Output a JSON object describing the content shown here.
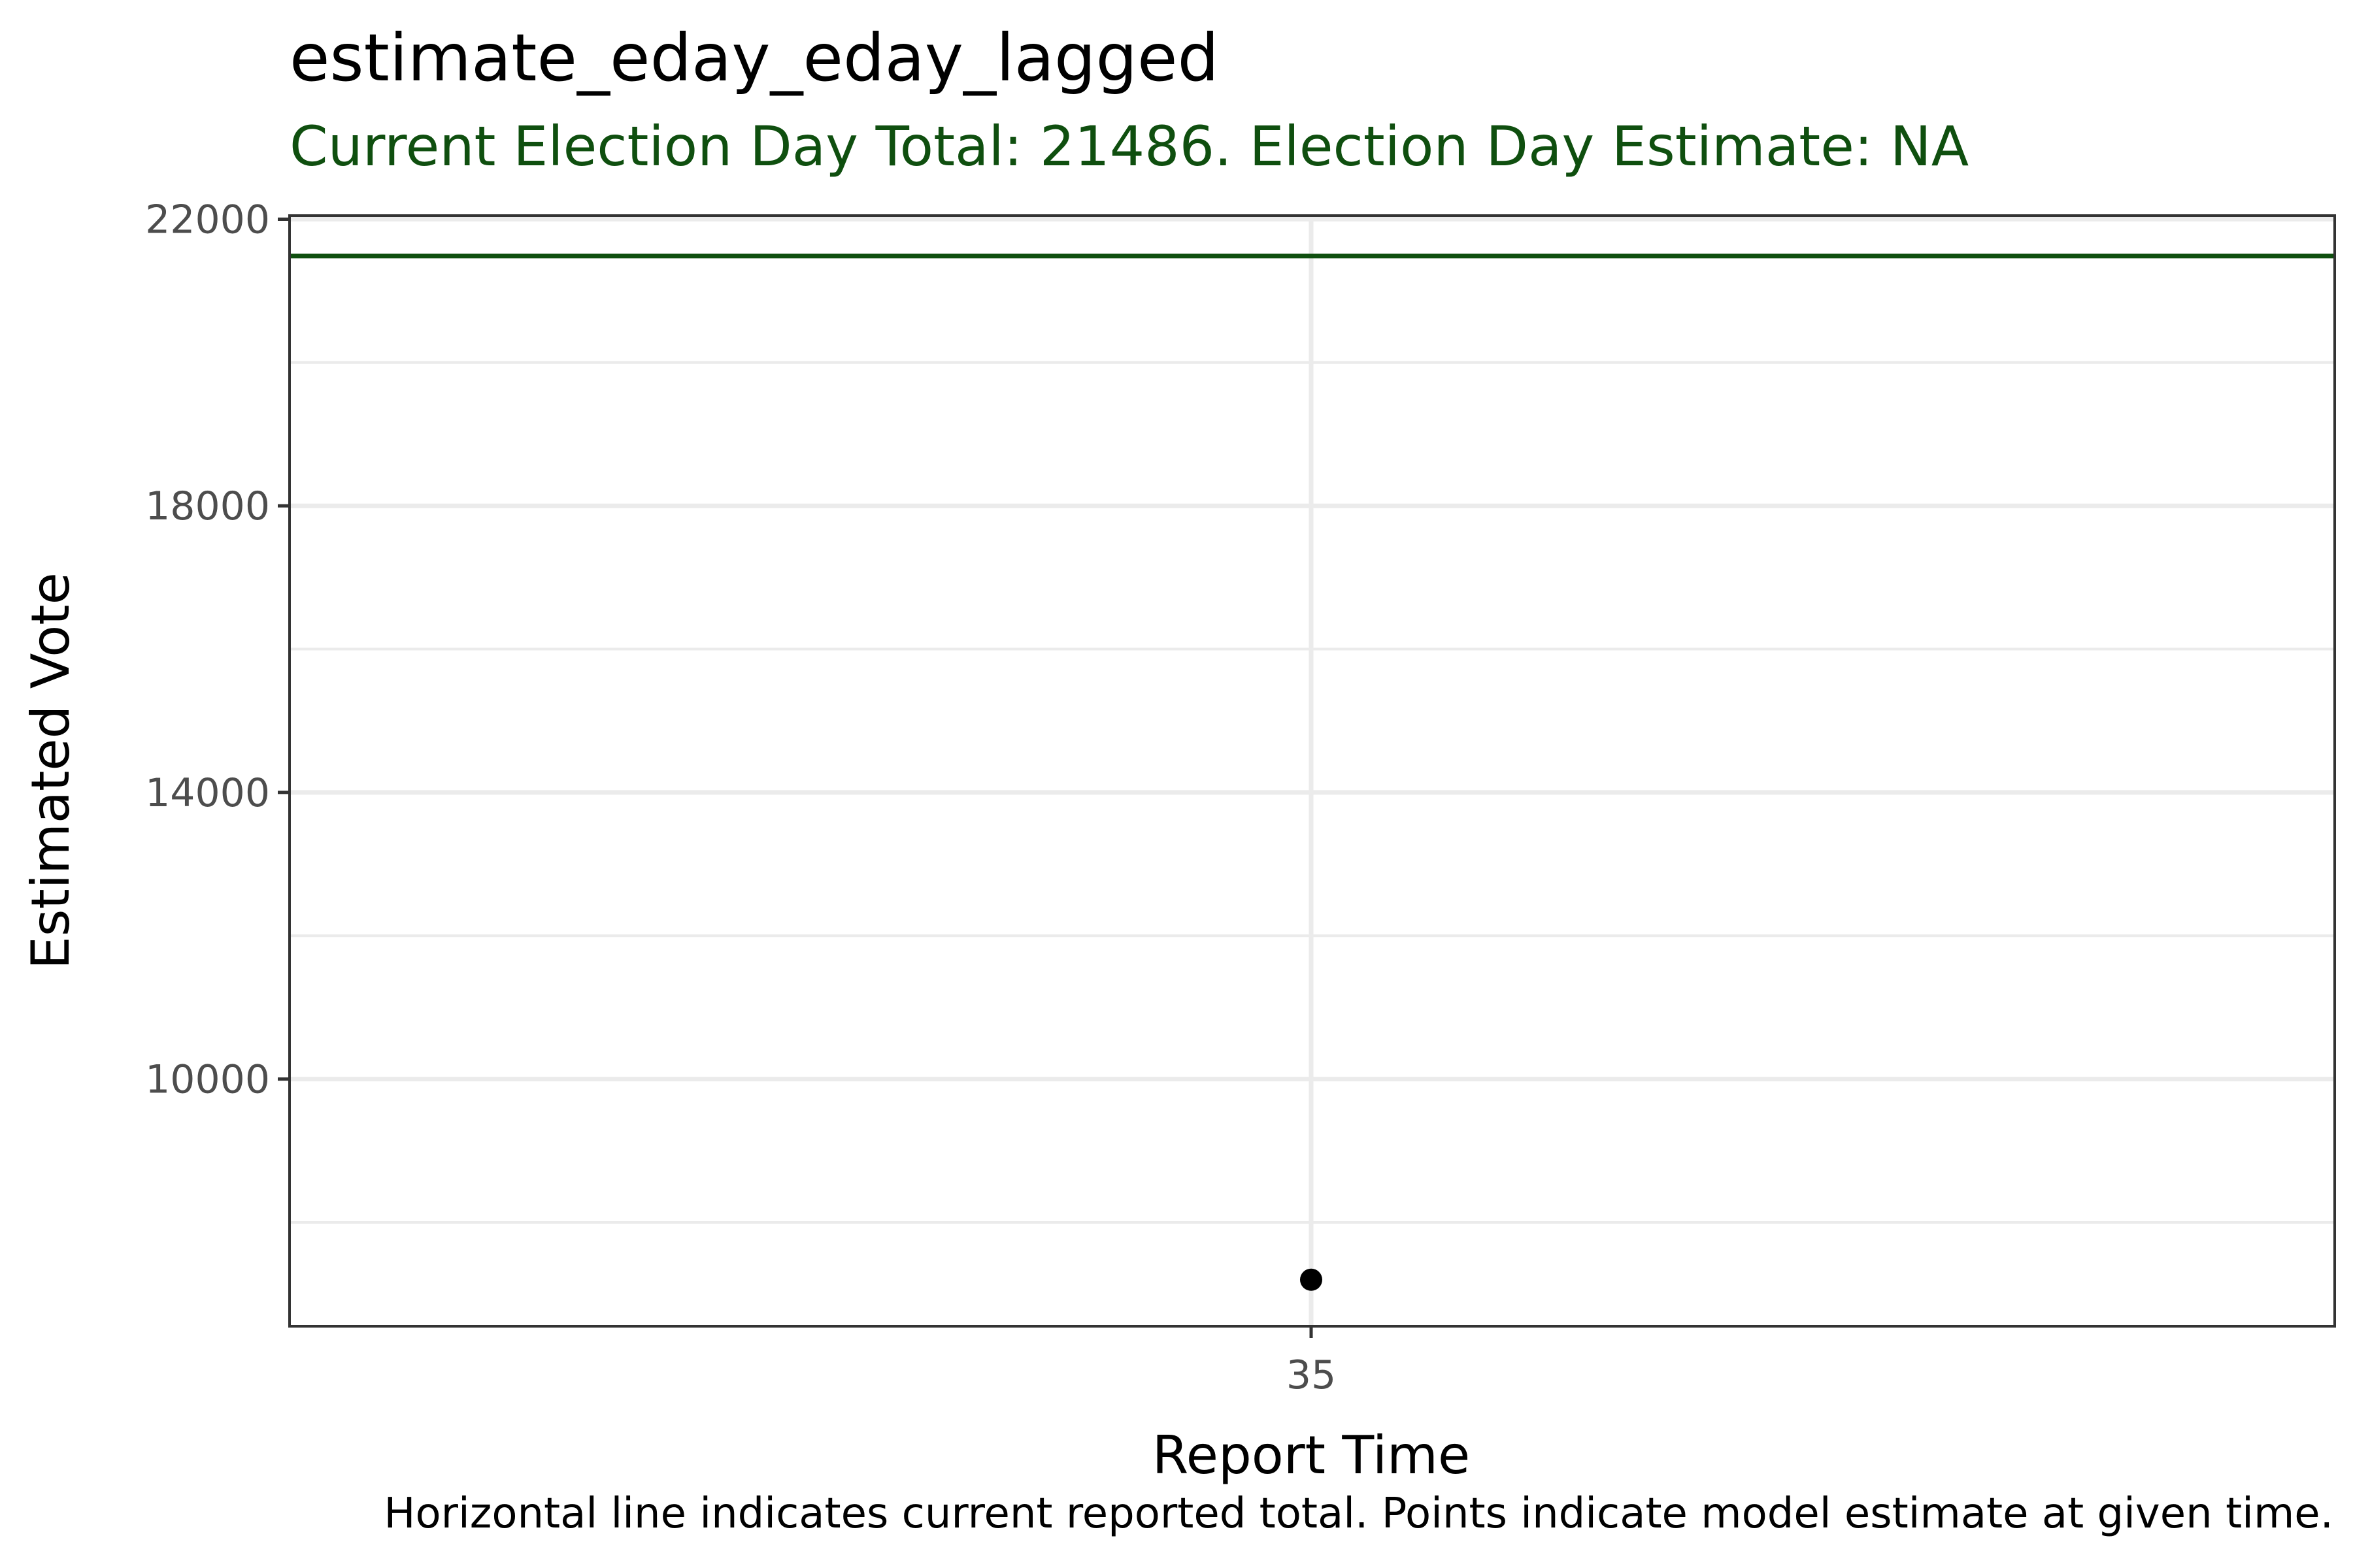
{
  "chart_data": {
    "type": "scatter",
    "title": "estimate_eday_eday_lagged",
    "subtitle": "Current Election Day Total: 21486. Election Day Estimate: NA",
    "caption": "Horizontal line indicates current reported total. Points indicate model estimate at given time.",
    "xlabel": "Report Time",
    "ylabel": "Estimated Vote",
    "x_ticks": [
      "35"
    ],
    "y_ticks": [
      10000,
      14000,
      18000,
      22000
    ],
    "y_tick_labels": [
      "10000",
      "14000",
      "18000",
      "22000"
    ],
    "ylim": [
      6550,
      22050
    ],
    "grid": true,
    "points": [
      {
        "x": "35",
        "y": 7200
      }
    ],
    "reference_line": {
      "y": 21486
    },
    "colors": {
      "accent": "#0f4f0f",
      "point": "#000000",
      "grid": "#ebebeb",
      "border": "#333333"
    }
  }
}
